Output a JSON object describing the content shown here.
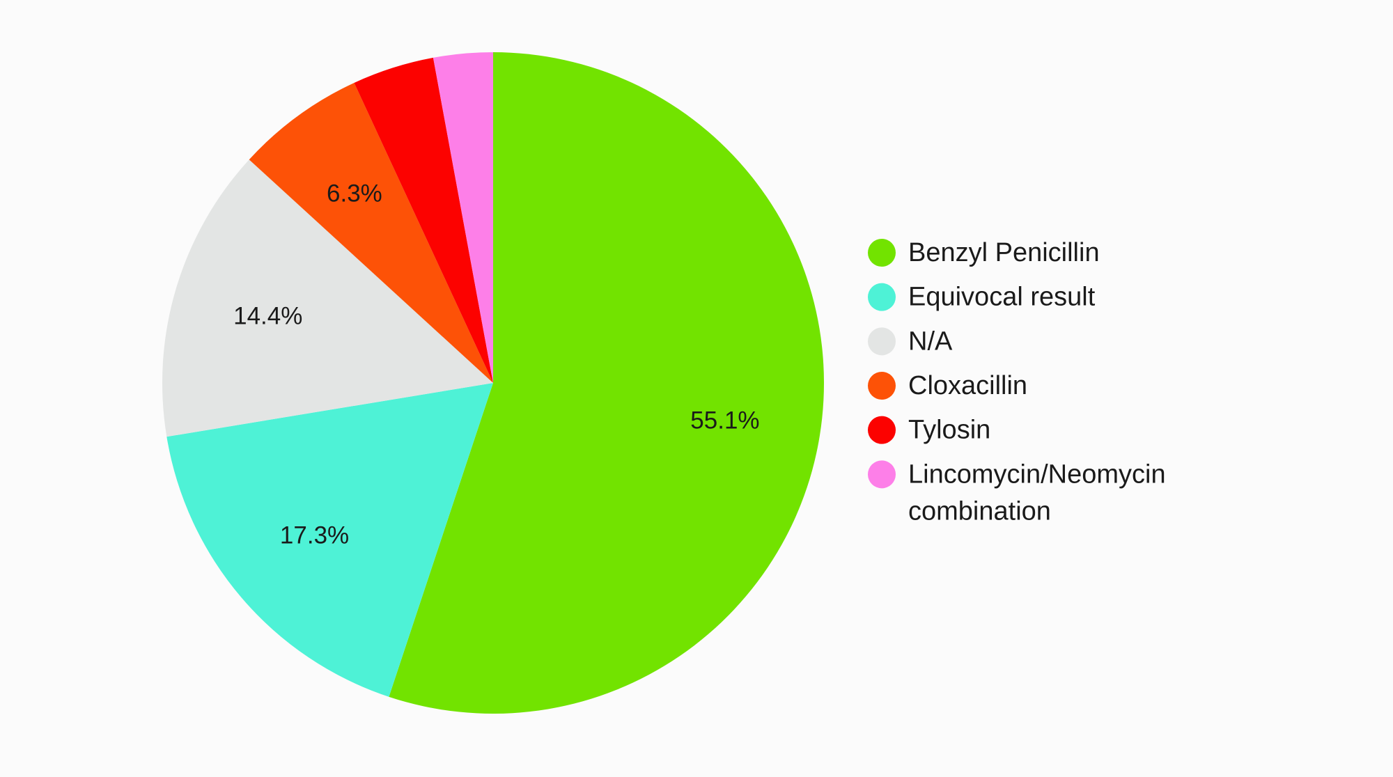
{
  "chart_data": {
    "type": "pie",
    "title": "",
    "slices": [
      {
        "name": "Benzyl Penicillin",
        "value": 55.1,
        "label": "55.1%",
        "color": "#72e300"
      },
      {
        "name": "Equivocal result",
        "value": 17.3,
        "label": "17.3%",
        "color": "#4ef2d6"
      },
      {
        "name": "N/A",
        "value": 14.4,
        "label": "14.4%",
        "color": "#e3e5e4"
      },
      {
        "name": "Cloxacillin",
        "value": 6.3,
        "label": "6.3%",
        "color": "#fd5207"
      },
      {
        "name": "Tylosin",
        "value": 4.0,
        "label": "",
        "color": "#fc0200"
      },
      {
        "name": "Lincomycin/Neomycin combination",
        "value": 2.9,
        "label": "",
        "color": "#fd7fe8"
      }
    ],
    "legend": {
      "placement": "right",
      "entries": [
        {
          "lines": [
            "Benzyl Penicillin"
          ],
          "color": "#72e300"
        },
        {
          "lines": [
            "Equivocal result"
          ],
          "color": "#4ef2d6"
        },
        {
          "lines": [
            "N/A"
          ],
          "color": "#e3e5e4"
        },
        {
          "lines": [
            "Cloxacillin"
          ],
          "color": "#fd5207"
        },
        {
          "lines": [
            "Tylosin"
          ],
          "color": "#fc0200"
        },
        {
          "lines": [
            "Lincomycin/Neomycin",
            "combination"
          ],
          "color": "#fd7fe8"
        }
      ]
    }
  }
}
